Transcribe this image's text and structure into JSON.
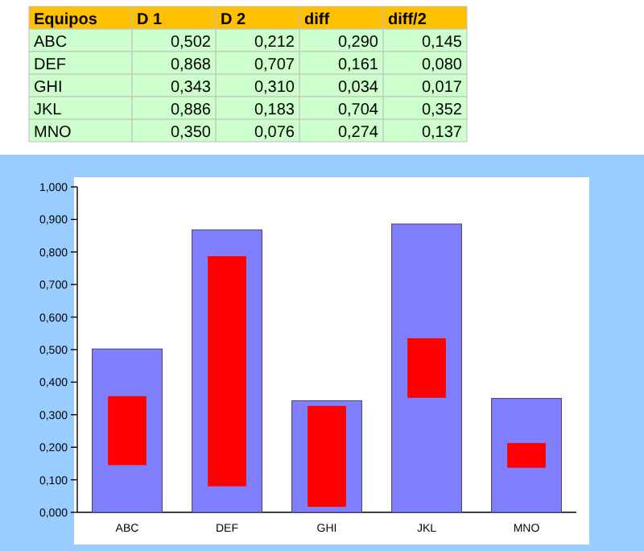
{
  "chart_data": {
    "type": "bar",
    "categories": [
      "ABC",
      "DEF",
      "GHI",
      "JKL",
      "MNO"
    ],
    "series": [
      {
        "color": "#8080ff",
        "values": [
          0.502,
          0.868,
          0.343,
          0.886,
          0.35
        ]
      },
      {
        "color": "#ff0000",
        "values": [
          0.212,
          0.707,
          0.31,
          0.183,
          0.076
        ],
        "base": [
          0.145,
          0.08,
          0.017,
          0.352,
          0.137
        ]
      }
    ],
    "annotations": [
      "Equipos",
      "D 1",
      "D 2",
      "diff",
      "diff/2",
      "ABC",
      "0,502",
      "0,212",
      "0,290",
      "0,145",
      "DEF",
      "0,868",
      "0,707",
      "0,161",
      "0,080",
      "GHI",
      "0,343",
      "0,310",
      "0,034",
      "0,017",
      "JKL",
      "0,886",
      "0,183",
      "0,704",
      "0,352",
      "MNO",
      "0,350",
      "0,076",
      "0,274",
      "0,137"
    ],
    "ylim": [
      0,
      1
    ],
    "yticks": [
      {
        "value": 0,
        "label": "0,000"
      },
      {
        "value": 0.1,
        "label": "0,100"
      },
      {
        "value": 0.2,
        "label": "0,200"
      },
      {
        "value": 0.3,
        "label": "0,300"
      },
      {
        "value": 0.4,
        "label": "0,400"
      },
      {
        "value": 0.5,
        "label": "0,500"
      },
      {
        "value": 0.6,
        "label": "0,600"
      },
      {
        "value": 0.7,
        "label": "0,700"
      },
      {
        "value": 0.8,
        "label": "0,800"
      },
      {
        "value": 0.9,
        "label": "0,900"
      },
      {
        "value": 1,
        "label": "1,000"
      }
    ]
  }
}
